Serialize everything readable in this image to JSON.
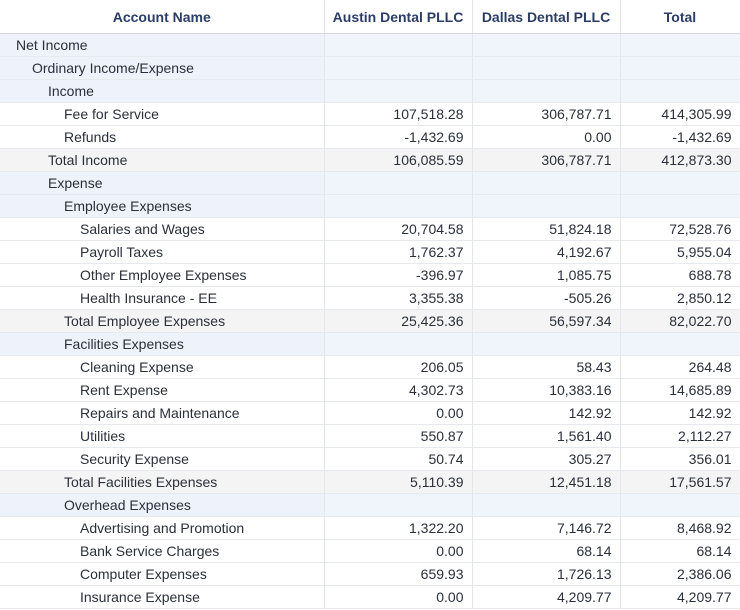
{
  "columns": {
    "account": "Account Name",
    "austin": "Austin Dental PLLC",
    "dallas": "Dallas Dental PLLC",
    "total": "Total"
  },
  "rows": [
    {
      "name": "Net Income",
      "level": 0,
      "kind": "group",
      "austin": "",
      "dallas": "",
      "total": ""
    },
    {
      "name": "Ordinary Income/Expense",
      "level": 1,
      "kind": "group",
      "austin": "",
      "dallas": "",
      "total": ""
    },
    {
      "name": "Income",
      "level": 2,
      "kind": "group",
      "austin": "",
      "dallas": "",
      "total": ""
    },
    {
      "name": "Fee for Service",
      "level": 3,
      "kind": "item",
      "austin": "107,518.28",
      "dallas": "306,787.71",
      "total": "414,305.99"
    },
    {
      "name": "Refunds",
      "level": 3,
      "kind": "item",
      "austin": "-1,432.69",
      "dallas": "0.00",
      "total": "-1,432.69"
    },
    {
      "name": "Total Income",
      "level": 2,
      "kind": "total",
      "austin": "106,085.59",
      "dallas": "306,787.71",
      "total": "412,873.30"
    },
    {
      "name": "Expense",
      "level": 2,
      "kind": "group",
      "austin": "",
      "dallas": "",
      "total": ""
    },
    {
      "name": "Employee Expenses",
      "level": 3,
      "kind": "group",
      "austin": "",
      "dallas": "",
      "total": ""
    },
    {
      "name": "Salaries and Wages",
      "level": 4,
      "kind": "item",
      "austin": "20,704.58",
      "dallas": "51,824.18",
      "total": "72,528.76"
    },
    {
      "name": "Payroll Taxes",
      "level": 4,
      "kind": "item",
      "austin": "1,762.37",
      "dallas": "4,192.67",
      "total": "5,955.04"
    },
    {
      "name": "Other Employee Expenses",
      "level": 4,
      "kind": "item",
      "austin": "-396.97",
      "dallas": "1,085.75",
      "total": "688.78"
    },
    {
      "name": "Health Insurance - EE",
      "level": 4,
      "kind": "item",
      "austin": "3,355.38",
      "dallas": "-505.26",
      "total": "2,850.12"
    },
    {
      "name": "Total Employee Expenses",
      "level": 3,
      "kind": "total",
      "austin": "25,425.36",
      "dallas": "56,597.34",
      "total": "82,022.70"
    },
    {
      "name": "Facilities Expenses",
      "level": 3,
      "kind": "group",
      "austin": "",
      "dallas": "",
      "total": ""
    },
    {
      "name": "Cleaning Expense",
      "level": 4,
      "kind": "item",
      "austin": "206.05",
      "dallas": "58.43",
      "total": "264.48"
    },
    {
      "name": "Rent Expense",
      "level": 4,
      "kind": "item",
      "austin": "4,302.73",
      "dallas": "10,383.16",
      "total": "14,685.89"
    },
    {
      "name": "Repairs and Maintenance",
      "level": 4,
      "kind": "item",
      "austin": "0.00",
      "dallas": "142.92",
      "total": "142.92"
    },
    {
      "name": "Utilities",
      "level": 4,
      "kind": "item",
      "austin": "550.87",
      "dallas": "1,561.40",
      "total": "2,112.27"
    },
    {
      "name": "Security Expense",
      "level": 4,
      "kind": "item",
      "austin": "50.74",
      "dallas": "305.27",
      "total": "356.01"
    },
    {
      "name": "Total Facilities Expenses",
      "level": 3,
      "kind": "total",
      "austin": "5,110.39",
      "dallas": "12,451.18",
      "total": "17,561.57"
    },
    {
      "name": "Overhead Expenses",
      "level": 3,
      "kind": "group",
      "austin": "",
      "dallas": "",
      "total": ""
    },
    {
      "name": "Advertising and Promotion",
      "level": 4,
      "kind": "item",
      "austin": "1,322.20",
      "dallas": "7,146.72",
      "total": "8,468.92"
    },
    {
      "name": "Bank Service Charges",
      "level": 4,
      "kind": "item",
      "austin": "0.00",
      "dallas": "68.14",
      "total": "68.14"
    },
    {
      "name": "Computer Expenses",
      "level": 4,
      "kind": "item",
      "austin": "659.93",
      "dallas": "1,726.13",
      "total": "2,386.06"
    },
    {
      "name": "Insurance Expense",
      "level": 4,
      "kind": "item",
      "austin": "0.00",
      "dallas": "4,209.77",
      "total": "4,209.77"
    }
  ]
}
